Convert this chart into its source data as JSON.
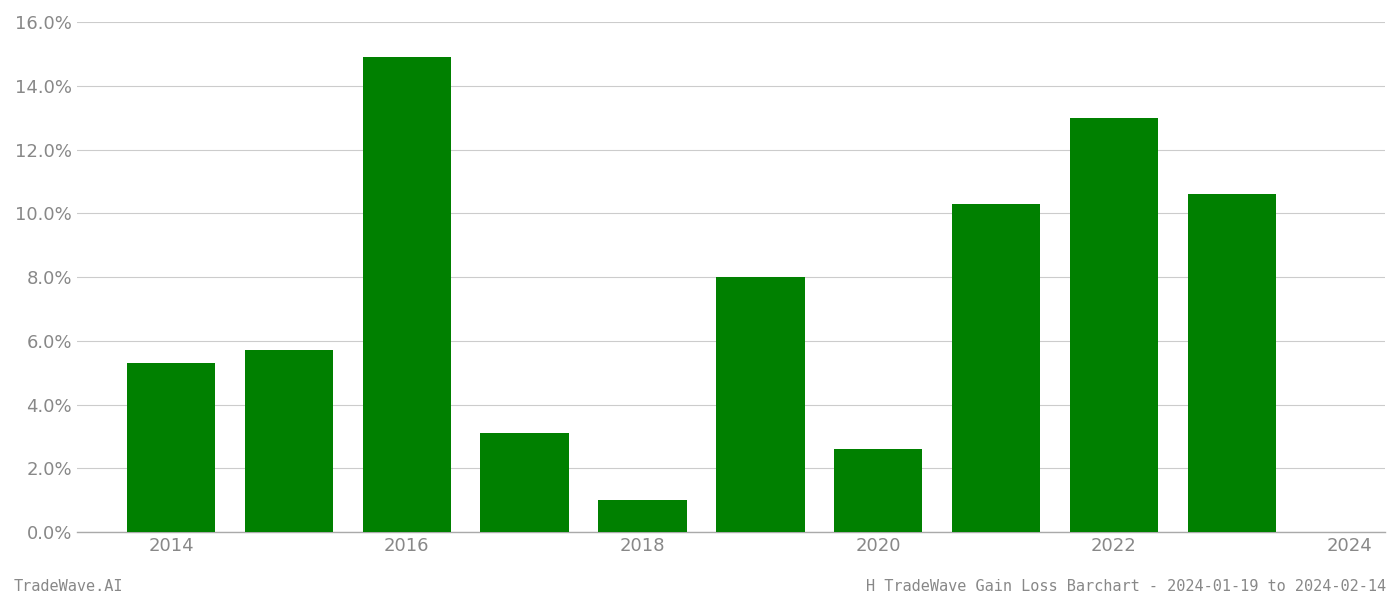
{
  "years": [
    2014,
    2015,
    2016,
    2017,
    2018,
    2019,
    2020,
    2021,
    2022,
    2023
  ],
  "values": [
    0.053,
    0.057,
    0.149,
    0.031,
    0.01,
    0.08,
    0.026,
    0.103,
    0.13,
    0.106
  ],
  "bar_color": "#008000",
  "background_color": "#ffffff",
  "grid_color": "#cccccc",
  "axis_color": "#aaaaaa",
  "tick_label_color": "#888888",
  "footer_left": "TradeWave.AI",
  "footer_right": "H TradeWave Gain Loss Barchart - 2024-01-19 to 2024-02-14",
  "ylim": [
    0,
    0.16
  ],
  "yticks": [
    0.0,
    0.02,
    0.04,
    0.06,
    0.08,
    0.1,
    0.12,
    0.14,
    0.16
  ],
  "xtick_labels": [
    "2014",
    "2016",
    "2018",
    "2020",
    "2022",
    "2024"
  ],
  "xtick_positions": [
    2014,
    2016,
    2018,
    2020,
    2022,
    2024
  ],
  "xlim": [
    2013.2,
    2024.3
  ],
  "bar_width": 0.75
}
